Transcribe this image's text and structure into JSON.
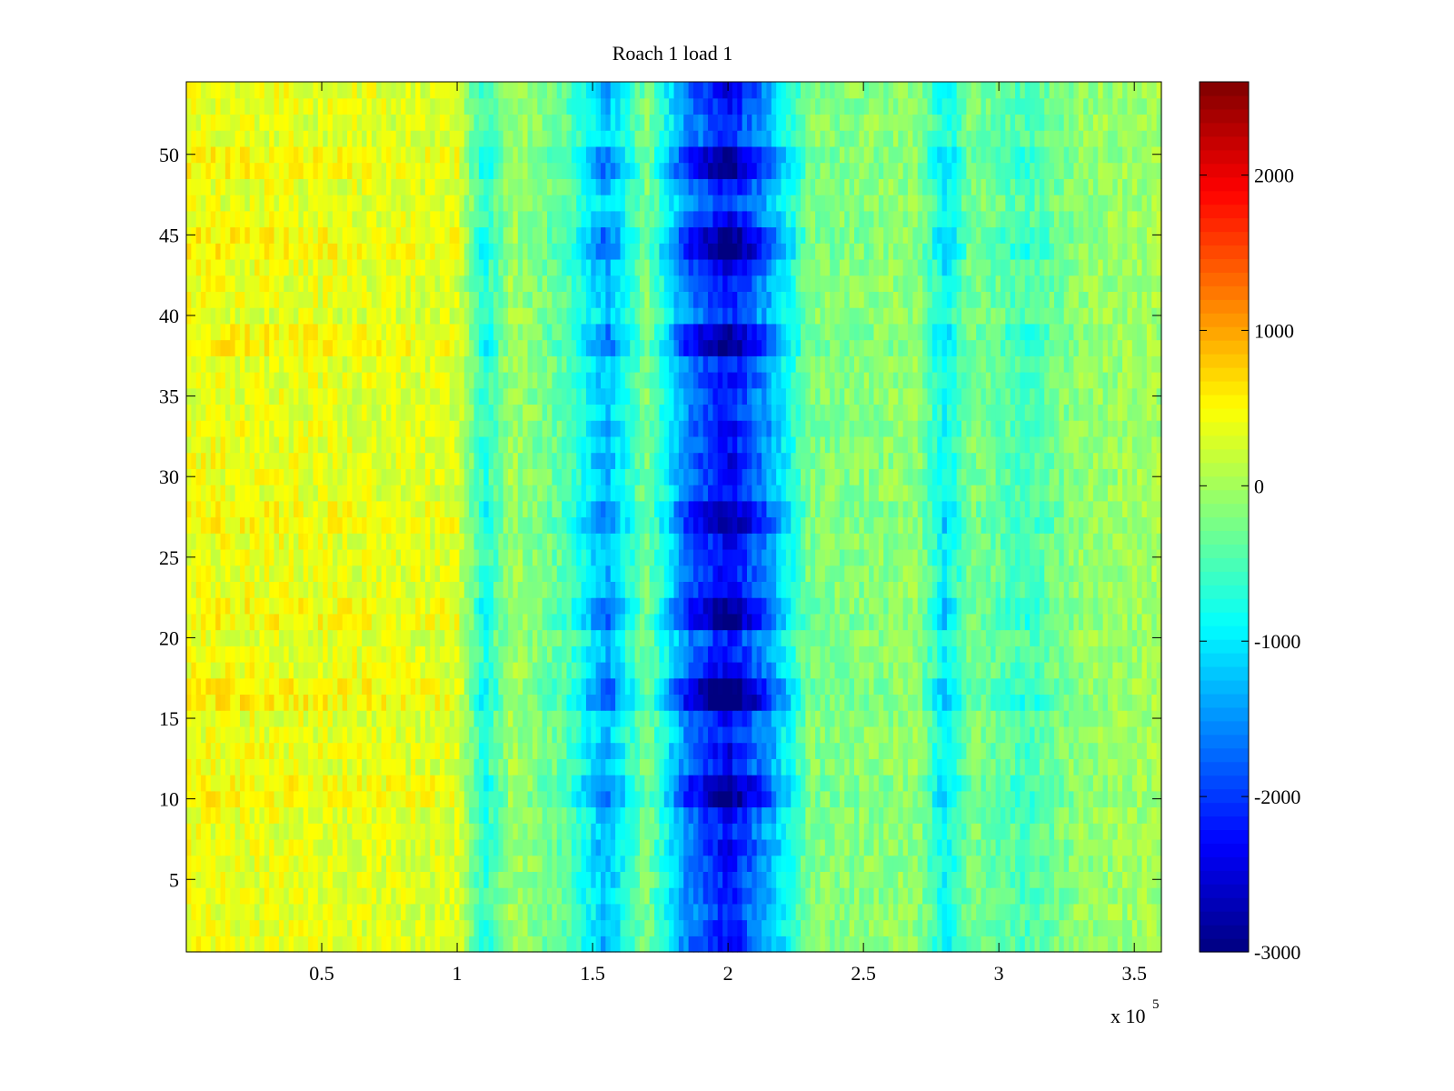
{
  "chart_data": {
    "type": "heatmap",
    "title": "Roach 1 load 1",
    "xlabel": "",
    "ylabel": "",
    "x_range": [
      0,
      360000
    ],
    "y_range": [
      0.5,
      54.5
    ],
    "x_ticks": [
      50000,
      100000,
      150000,
      200000,
      250000,
      300000,
      350000
    ],
    "x_tick_labels": [
      "0.5",
      "1",
      "1.5",
      "2",
      "2.5",
      "3",
      "3.5"
    ],
    "x_multiplier_base": "x 10",
    "x_multiplier_exponent": "5",
    "y_ticks": [
      5,
      10,
      15,
      20,
      25,
      30,
      35,
      40,
      45,
      50
    ],
    "y_tick_labels": [
      "5",
      "10",
      "15",
      "20",
      "25",
      "30",
      "35",
      "40",
      "45",
      "50"
    ],
    "colorbar": {
      "colormap": "jet",
      "range": [
        -3000,
        2600
      ],
      "ticks": [
        2000,
        1000,
        0,
        -1000,
        -2000,
        -3000
      ],
      "tick_labels": [
        "2000",
        "1000",
        "0",
        "-1000",
        "-2000",
        "-3000"
      ]
    },
    "rows": 54,
    "approx_column_profile": {
      "description": "approximate mean value vs x (data units), with strong negative bands",
      "x": [
        0,
        100000,
        110000,
        120000,
        140000,
        155000,
        170000,
        185000,
        200000,
        215000,
        230000,
        270000,
        280000,
        290000,
        310000,
        330000,
        360000
      ],
      "value": [
        400,
        300,
        -700,
        0,
        -400,
        -1300,
        -200,
        -1600,
        -2300,
        -1400,
        -200,
        -100,
        -900,
        -200,
        -500,
        -100,
        0
      ]
    },
    "row_offsets": {
      "description": "rows with stronger magnitude (warmer left side, darker bands)",
      "rows": [
        10,
        11,
        16,
        17,
        21,
        22,
        27,
        28,
        38,
        39,
        44,
        45,
        49,
        50
      ],
      "scale": [
        1.35,
        1.3,
        1.5,
        1.45,
        1.35,
        1.3,
        1.3,
        1.25,
        1.35,
        1.3,
        1.4,
        1.35,
        1.35,
        1.3
      ]
    }
  }
}
